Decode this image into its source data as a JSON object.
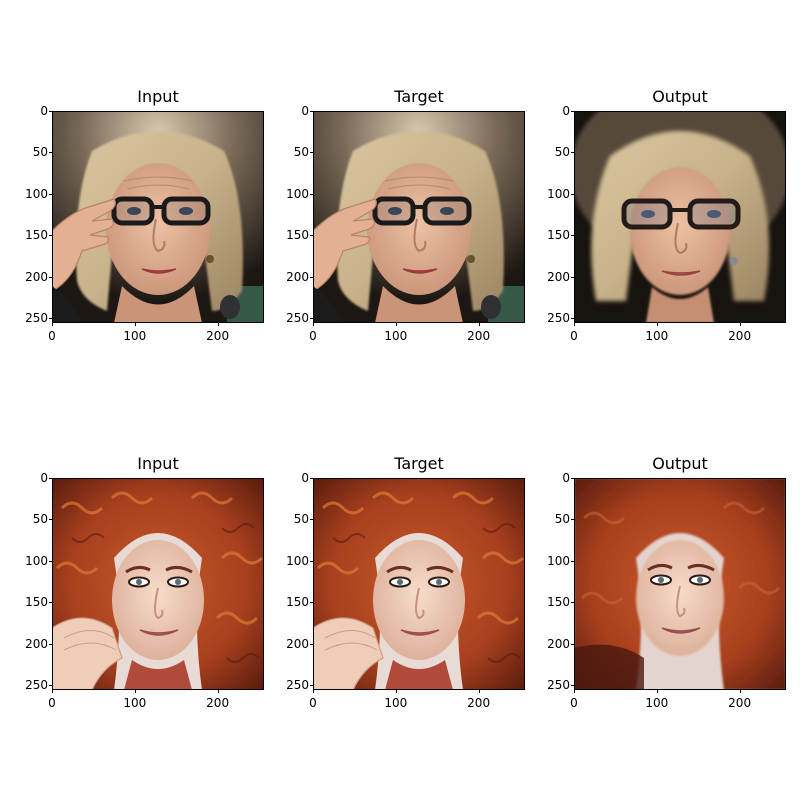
{
  "figure": {
    "rows": [
      {
        "subject": "woman with short blonde hair and dark glasses adjusting her glasses",
        "panels": [
          {
            "title": "Input",
            "variant": "blonde-glasses"
          },
          {
            "title": "Target",
            "variant": "blonde-glasses"
          },
          {
            "title": "Output",
            "variant": "blonde-glasses-reconstructed"
          }
        ]
      },
      {
        "subject": "smiling woman with long curly red hair resting chin on hand",
        "panels": [
          {
            "title": "Input",
            "variant": "red-curls"
          },
          {
            "title": "Target",
            "variant": "red-curls"
          },
          {
            "title": "Output",
            "variant": "red-curls-reconstructed"
          }
        ]
      }
    ],
    "y_ticks": [
      "0",
      "50",
      "100",
      "150",
      "200",
      "250"
    ],
    "x_ticks": [
      "0",
      "100",
      "200"
    ],
    "colors": {
      "dark_background": "#1c1712",
      "blonde_hair": "#c8b28a",
      "skin_light": "#e3b597",
      "red_hair": "#a8401e",
      "wall": "#e8dad4"
    }
  }
}
